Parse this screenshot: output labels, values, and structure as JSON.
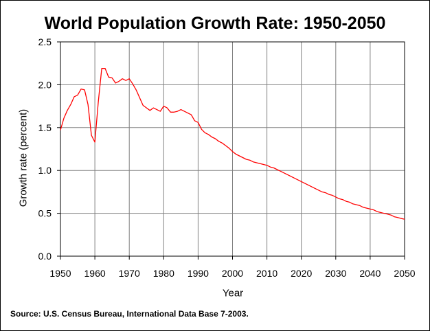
{
  "chart_data": {
    "type": "line",
    "title": "World Population Growth Rate: 1950-2050",
    "xlabel": "Year",
    "ylabel": "Growth rate (percent)",
    "source": "Source: U.S. Census Bureau, International Data Base 7-2003.",
    "xlim": [
      1950,
      2050
    ],
    "ylim": [
      0.0,
      2.5
    ],
    "x_ticks": [
      1950,
      1960,
      1970,
      1980,
      1990,
      2000,
      2010,
      2020,
      2030,
      2040,
      2050
    ],
    "y_ticks": [
      "0.0",
      "0.5",
      "1.0",
      "1.5",
      "2.0",
      "2.5"
    ],
    "grid": true,
    "legend": "none",
    "series": [
      {
        "color": "#ff0000",
        "x": [
          1950,
          1951,
          1952,
          1953,
          1954,
          1955,
          1956,
          1957,
          1958,
          1959,
          1960,
          1961,
          1962,
          1963,
          1964,
          1965,
          1966,
          1967,
          1968,
          1969,
          1970,
          1971,
          1972,
          1973,
          1974,
          1975,
          1976,
          1977,
          1978,
          1979,
          1980,
          1981,
          1982,
          1983,
          1984,
          1985,
          1986,
          1987,
          1988,
          1989,
          1990,
          1991,
          1992,
          1993,
          1994,
          1995,
          1996,
          1997,
          1998,
          1999,
          2000,
          2001,
          2002,
          2003,
          2004,
          2005,
          2006,
          2007,
          2008,
          2009,
          2010,
          2011,
          2012,
          2013,
          2014,
          2015,
          2016,
          2017,
          2018,
          2019,
          2020,
          2021,
          2022,
          2023,
          2024,
          2025,
          2026,
          2027,
          2028,
          2029,
          2030,
          2031,
          2032,
          2033,
          2034,
          2035,
          2036,
          2037,
          2038,
          2039,
          2040,
          2041,
          2042,
          2043,
          2044,
          2045,
          2046,
          2047,
          2048,
          2049,
          2050
        ],
        "values": [
          1.47,
          1.61,
          1.7,
          1.77,
          1.86,
          1.88,
          1.95,
          1.94,
          1.77,
          1.41,
          1.33,
          1.8,
          2.19,
          2.19,
          2.09,
          2.08,
          2.02,
          2.04,
          2.07,
          2.05,
          2.07,
          2.01,
          1.94,
          1.85,
          1.76,
          1.73,
          1.7,
          1.73,
          1.71,
          1.69,
          1.75,
          1.73,
          1.68,
          1.68,
          1.69,
          1.71,
          1.69,
          1.67,
          1.65,
          1.58,
          1.56,
          1.48,
          1.44,
          1.42,
          1.39,
          1.37,
          1.34,
          1.32,
          1.29,
          1.26,
          1.22,
          1.19,
          1.17,
          1.15,
          1.13,
          1.12,
          1.1,
          1.09,
          1.08,
          1.07,
          1.06,
          1.04,
          1.03,
          1.01,
          0.99,
          0.97,
          0.95,
          0.93,
          0.91,
          0.89,
          0.87,
          0.85,
          0.83,
          0.81,
          0.79,
          0.77,
          0.75,
          0.74,
          0.72,
          0.71,
          0.69,
          0.67,
          0.66,
          0.64,
          0.63,
          0.61,
          0.6,
          0.59,
          0.57,
          0.56,
          0.55,
          0.54,
          0.52,
          0.51,
          0.5,
          0.49,
          0.48,
          0.46,
          0.45,
          0.44,
          0.43
        ]
      }
    ]
  }
}
